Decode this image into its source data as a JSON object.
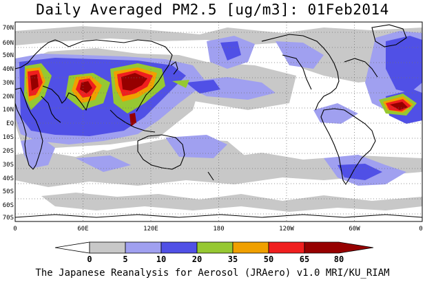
{
  "title": "Daily Averaged PM2.5 [ug/m3]: 01Feb2014",
  "lat_labels": [
    "70N",
    "60N",
    "50N",
    "40N",
    "30N",
    "20N",
    "10N",
    "EQ",
    "10S",
    "20S",
    "30S",
    "40S",
    "50S",
    "60S",
    "70S"
  ],
  "lon_labels": [
    "0",
    "60E",
    "120E",
    "180",
    "120W",
    "60W",
    "0"
  ],
  "colorbar": {
    "labels": [
      "0",
      "5",
      "10",
      "20",
      "35",
      "50",
      "65",
      "80"
    ],
    "colors": [
      "#ffffff",
      "#c8c8c8",
      "#a0a0f0",
      "#5050e6",
      "#96c832",
      "#f0a000",
      "#f01e1e",
      "#960000"
    ]
  },
  "credit": "The Japanese Reanalysis for Aerosol (JRAero) v1.0 MRI/KU_RIAM"
}
